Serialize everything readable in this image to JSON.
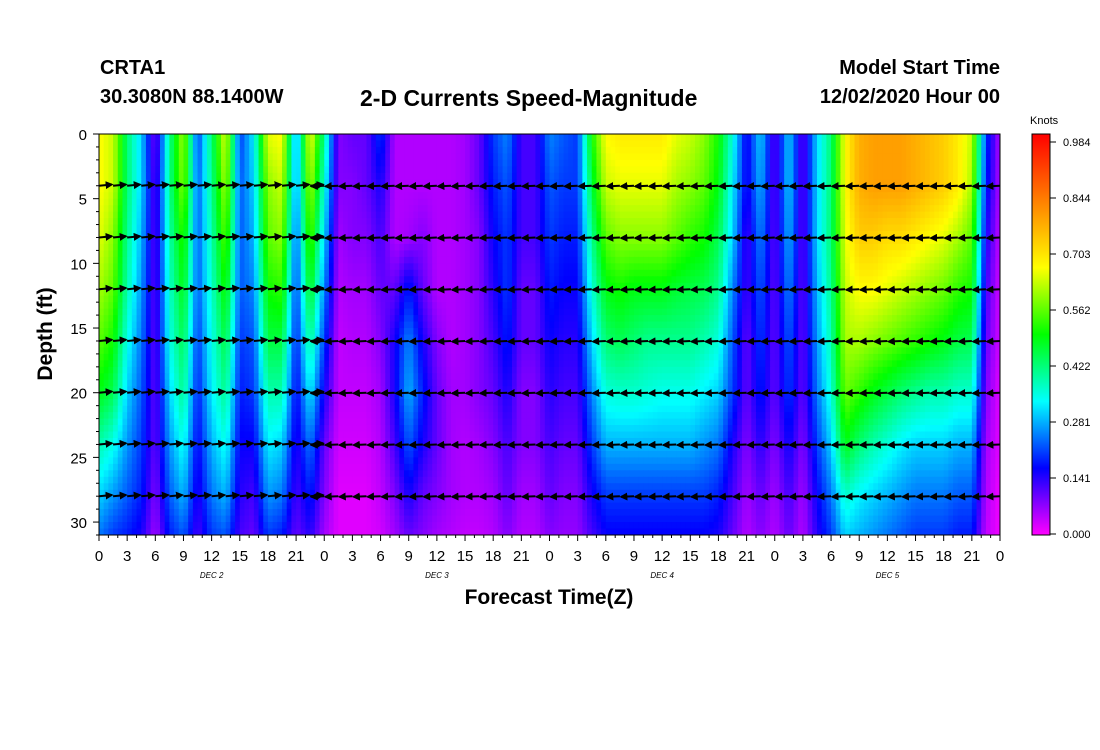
{
  "header": {
    "station": "CRTA1",
    "coords": "30.3080N 88.1400W",
    "title": "2-D Currents Speed-Magnitude",
    "model_start_label": "Model Start Time",
    "model_start_value": "12/02/2020 Hour 00"
  },
  "chart_data": {
    "type": "heatmap",
    "title": "2-D Currents Speed-Magnitude",
    "xlabel": "Forecast Time(Z)",
    "ylabel": "Depth (ft)",
    "x_tick_labels": [
      "0",
      "3",
      "6",
      "9",
      "12",
      "15",
      "18",
      "21",
      "0",
      "3",
      "6",
      "9",
      "12",
      "15",
      "18",
      "21",
      "0",
      "3",
      "6",
      "9",
      "12",
      "15",
      "18",
      "21",
      "0",
      "3",
      "6",
      "9",
      "12",
      "15",
      "18",
      "21",
      "0"
    ],
    "day_labels": [
      "DEC 2",
      "DEC 3",
      "DEC 4",
      "DEC 5"
    ],
    "xlim_hours": [
      0,
      96
    ],
    "ylim_ft": [
      0,
      31
    ],
    "y_ticks": [
      0,
      5,
      10,
      15,
      20,
      25,
      30
    ],
    "y_inverted": true,
    "colorbar": {
      "unit": "Knots",
      "range": [
        0,
        0.984
      ],
      "tick_labels": [
        "0.984",
        "0.844",
        "0.703",
        "0.562",
        "0.422",
        "0.281",
        "0.141",
        "0.000"
      ],
      "colors": [
        "#ff00ff",
        "#0000ff",
        "#00ffff",
        "#00ff00",
        "#ffff00",
        "#ff8000",
        "#ff0000"
      ]
    },
    "depth_levels_ft": [
      0,
      4,
      8,
      12,
      16,
      20,
      24,
      28,
      31
    ],
    "speed_knots_by_depth": [
      [
        0.66,
        0.62,
        0.42,
        0.3,
        0.08,
        0.4,
        0.6,
        0.2,
        0.42,
        0.64,
        0.2,
        0.32,
        0.64,
        0.66,
        0.25,
        0.66,
        0.4,
        0.08,
        0.1,
        0.1,
        0.2,
        0.05,
        0.05,
        0.05,
        0.05,
        0.05,
        0.06,
        0.1,
        0.2,
        0.25,
        0.12,
        0.12,
        0.25,
        0.22,
        0.2,
        0.5,
        0.66,
        0.68,
        0.68,
        0.68,
        0.68,
        0.64,
        0.62,
        0.58,
        0.5,
        0.35,
        0.15,
        0.3,
        0.1,
        0.3,
        0.1,
        0.3,
        0.42,
        0.66,
        0.76,
        0.78,
        0.78,
        0.78,
        0.76,
        0.74,
        0.72,
        0.68,
        0.62,
        0.2,
        0.05
      ],
      [
        0.66,
        0.62,
        0.42,
        0.3,
        0.1,
        0.4,
        0.58,
        0.22,
        0.4,
        0.6,
        0.22,
        0.3,
        0.58,
        0.62,
        0.25,
        0.6,
        0.35,
        0.08,
        0.08,
        0.1,
        0.15,
        0.05,
        0.05,
        0.05,
        0.05,
        0.05,
        0.06,
        0.1,
        0.18,
        0.22,
        0.12,
        0.12,
        0.22,
        0.2,
        0.2,
        0.45,
        0.62,
        0.64,
        0.64,
        0.64,
        0.64,
        0.6,
        0.58,
        0.55,
        0.48,
        0.32,
        0.15,
        0.28,
        0.1,
        0.3,
        0.1,
        0.3,
        0.42,
        0.66,
        0.76,
        0.78,
        0.78,
        0.78,
        0.76,
        0.74,
        0.72,
        0.68,
        0.6,
        0.18,
        0.05
      ],
      [
        0.64,
        0.58,
        0.4,
        0.28,
        0.1,
        0.38,
        0.52,
        0.22,
        0.38,
        0.55,
        0.22,
        0.28,
        0.55,
        0.58,
        0.22,
        0.55,
        0.3,
        0.06,
        0.08,
        0.08,
        0.12,
        0.05,
        0.06,
        0.08,
        0.05,
        0.05,
        0.06,
        0.08,
        0.16,
        0.2,
        0.12,
        0.12,
        0.2,
        0.18,
        0.18,
        0.4,
        0.55,
        0.58,
        0.58,
        0.58,
        0.58,
        0.55,
        0.52,
        0.5,
        0.44,
        0.3,
        0.12,
        0.25,
        0.1,
        0.28,
        0.1,
        0.3,
        0.42,
        0.64,
        0.72,
        0.72,
        0.7,
        0.7,
        0.68,
        0.66,
        0.64,
        0.6,
        0.55,
        0.15,
        0.04
      ],
      [
        0.6,
        0.55,
        0.38,
        0.26,
        0.1,
        0.36,
        0.48,
        0.22,
        0.36,
        0.5,
        0.22,
        0.25,
        0.5,
        0.52,
        0.2,
        0.48,
        0.25,
        0.05,
        0.06,
        0.06,
        0.1,
        0.1,
        0.18,
        0.1,
        0.05,
        0.05,
        0.06,
        0.08,
        0.14,
        0.2,
        0.1,
        0.1,
        0.18,
        0.16,
        0.16,
        0.35,
        0.48,
        0.5,
        0.48,
        0.48,
        0.48,
        0.46,
        0.45,
        0.44,
        0.4,
        0.25,
        0.12,
        0.22,
        0.1,
        0.25,
        0.1,
        0.28,
        0.4,
        0.62,
        0.66,
        0.66,
        0.64,
        0.62,
        0.6,
        0.58,
        0.56,
        0.52,
        0.5,
        0.12,
        0.03
      ],
      [
        0.55,
        0.5,
        0.34,
        0.24,
        0.1,
        0.34,
        0.44,
        0.2,
        0.34,
        0.45,
        0.2,
        0.22,
        0.45,
        0.45,
        0.18,
        0.4,
        0.2,
        0.04,
        0.05,
        0.05,
        0.08,
        0.15,
        0.25,
        0.15,
        0.08,
        0.05,
        0.06,
        0.08,
        0.12,
        0.18,
        0.1,
        0.1,
        0.16,
        0.14,
        0.14,
        0.3,
        0.42,
        0.44,
        0.42,
        0.4,
        0.4,
        0.4,
        0.4,
        0.38,
        0.35,
        0.22,
        0.1,
        0.2,
        0.1,
        0.22,
        0.1,
        0.26,
        0.38,
        0.6,
        0.6,
        0.58,
        0.56,
        0.54,
        0.52,
        0.5,
        0.48,
        0.45,
        0.44,
        0.1,
        0.03
      ],
      [
        0.48,
        0.44,
        0.3,
        0.22,
        0.1,
        0.3,
        0.4,
        0.18,
        0.32,
        0.4,
        0.18,
        0.2,
        0.38,
        0.38,
        0.16,
        0.32,
        0.15,
        0.04,
        0.04,
        0.04,
        0.06,
        0.15,
        0.28,
        0.18,
        0.1,
        0.06,
        0.06,
        0.08,
        0.1,
        0.15,
        0.08,
        0.08,
        0.14,
        0.12,
        0.12,
        0.25,
        0.35,
        0.36,
        0.36,
        0.35,
        0.34,
        0.34,
        0.34,
        0.32,
        0.3,
        0.2,
        0.1,
        0.18,
        0.1,
        0.2,
        0.1,
        0.24,
        0.35,
        0.56,
        0.52,
        0.48,
        0.45,
        0.42,
        0.4,
        0.38,
        0.38,
        0.36,
        0.36,
        0.08,
        0.02
      ],
      [
        0.38,
        0.34,
        0.26,
        0.2,
        0.1,
        0.26,
        0.34,
        0.16,
        0.28,
        0.34,
        0.16,
        0.16,
        0.32,
        0.3,
        0.14,
        0.24,
        0.1,
        0.03,
        0.03,
        0.03,
        0.05,
        0.12,
        0.22,
        0.15,
        0.1,
        0.06,
        0.05,
        0.06,
        0.08,
        0.12,
        0.08,
        0.08,
        0.12,
        0.1,
        0.1,
        0.2,
        0.28,
        0.28,
        0.28,
        0.28,
        0.28,
        0.28,
        0.28,
        0.26,
        0.24,
        0.15,
        0.08,
        0.14,
        0.08,
        0.16,
        0.08,
        0.2,
        0.3,
        0.48,
        0.42,
        0.38,
        0.35,
        0.32,
        0.3,
        0.3,
        0.3,
        0.28,
        0.28,
        0.06,
        0.02
      ],
      [
        0.3,
        0.26,
        0.22,
        0.18,
        0.08,
        0.22,
        0.28,
        0.14,
        0.24,
        0.28,
        0.14,
        0.12,
        0.26,
        0.24,
        0.12,
        0.18,
        0.08,
        0.02,
        0.02,
        0.02,
        0.04,
        0.08,
        0.15,
        0.1,
        0.08,
        0.06,
        0.05,
        0.05,
        0.06,
        0.1,
        0.06,
        0.06,
        0.1,
        0.08,
        0.08,
        0.15,
        0.2,
        0.2,
        0.2,
        0.2,
        0.2,
        0.2,
        0.2,
        0.2,
        0.18,
        0.12,
        0.06,
        0.1,
        0.06,
        0.12,
        0.06,
        0.16,
        0.24,
        0.36,
        0.32,
        0.3,
        0.28,
        0.26,
        0.24,
        0.24,
        0.24,
        0.22,
        0.22,
        0.05,
        0.01
      ],
      [
        0.24,
        0.2,
        0.18,
        0.15,
        0.06,
        0.18,
        0.22,
        0.12,
        0.2,
        0.22,
        0.12,
        0.1,
        0.2,
        0.18,
        0.1,
        0.14,
        0.06,
        0.02,
        0.02,
        0.02,
        0.03,
        0.06,
        0.1,
        0.08,
        0.06,
        0.05,
        0.04,
        0.04,
        0.05,
        0.08,
        0.05,
        0.05,
        0.08,
        0.07,
        0.07,
        0.12,
        0.16,
        0.16,
        0.16,
        0.16,
        0.16,
        0.16,
        0.16,
        0.16,
        0.15,
        0.1,
        0.05,
        0.08,
        0.05,
        0.1,
        0.05,
        0.14,
        0.2,
        0.3,
        0.28,
        0.26,
        0.24,
        0.22,
        0.2,
        0.2,
        0.2,
        0.18,
        0.18,
        0.04,
        0.01
      ]
    ],
    "vector_rows_depth_ft": [
      4,
      8,
      12,
      16,
      20,
      24,
      28
    ],
    "vector_direction": "arrows show current direction; mostly eastward Dec 2 and westward Dec 4-5"
  }
}
